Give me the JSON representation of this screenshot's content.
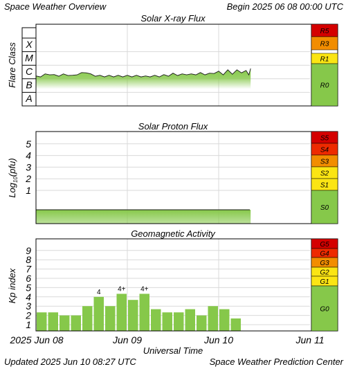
{
  "header": {
    "left": "Space Weather Overview",
    "right": "Begin 2025 06 08 00:00 UTC"
  },
  "footer": {
    "left": "Updated 2025 Jun 10 08:27 UTC",
    "right": "Space Weather Prediction Center"
  },
  "colors": {
    "series_green": "#86c84a",
    "grid": "#d9d9d9",
    "scale_red": "#d40000",
    "scale_redorange": "#ee2a00",
    "scale_orange": "#f28d00",
    "scale_yellow": "#fbe514",
    "scale_green": "#86c84a"
  },
  "chart_data": [
    {
      "type": "area",
      "title": "Solar X-ray Flux",
      "ylabel": "Flare Class",
      "yticks": [
        "A",
        "B",
        "C",
        "M",
        "X"
      ],
      "ylim": [
        0,
        5
      ],
      "xticks": [
        "2025 Jun 08",
        "Jun 09",
        "Jun 10",
        "Jun 11"
      ],
      "xlim_days": [
        0,
        3
      ],
      "data_end_day": 2.35,
      "series": [
        {
          "x_day": [
            0,
            0.05,
            0.1,
            0.15,
            0.2,
            0.25,
            0.3,
            0.35,
            0.4,
            0.45,
            0.5,
            0.55,
            0.6,
            0.65,
            0.7,
            0.75,
            0.8,
            0.85,
            0.9,
            0.95,
            1.0,
            1.05,
            1.1,
            1.15,
            1.2,
            1.25,
            1.3,
            1.35,
            1.4,
            1.45,
            1.5,
            1.55,
            1.6,
            1.65,
            1.7,
            1.75,
            1.8,
            1.85,
            1.9,
            1.95,
            2.0,
            2.05,
            2.1,
            2.15,
            2.2,
            2.25,
            2.3,
            2.33,
            2.35
          ],
          "y_level": [
            2.15,
            2.2,
            2.3,
            2.35,
            2.25,
            2.25,
            2.3,
            2.3,
            2.2,
            2.35,
            2.4,
            2.5,
            2.3,
            2.25,
            2.2,
            2.2,
            2.2,
            2.2,
            2.2,
            2.2,
            2.2,
            2.2,
            2.2,
            2.2,
            2.15,
            2.2,
            2.2,
            2.2,
            2.25,
            2.25,
            2.35,
            2.3,
            2.3,
            2.35,
            2.3,
            2.35,
            2.4,
            2.35,
            2.35,
            2.45,
            2.5,
            2.35,
            2.6,
            2.4,
            2.6,
            2.5,
            2.55,
            2.35,
            2.7
          ]
        }
      ],
      "scale": [
        {
          "label": "R5",
          "color": "#d40000"
        },
        {
          "label": "R3",
          "color": "#f28d00"
        },
        {
          "label": "R1",
          "color": "#fbe514"
        },
        {
          "label": "R0",
          "color": "#86c84a"
        }
      ]
    },
    {
      "type": "area",
      "title": "Solar Proton Flux",
      "ylabel": "Log10(pfu)",
      "yticks": [
        1,
        2,
        3,
        4,
        5
      ],
      "ylim": [
        -1.5,
        5.5
      ],
      "xlim_days": [
        0,
        3
      ],
      "data_end_day": 2.35,
      "series": [
        {
          "x_day": [
            0,
            0.5,
            1.0,
            1.5,
            2.0,
            2.35
          ],
          "y": [
            -0.7,
            -0.7,
            -0.7,
            -0.7,
            -0.72,
            -0.7
          ]
        }
      ],
      "scale": [
        {
          "label": "S5",
          "color": "#d40000"
        },
        {
          "label": "S4",
          "color": "#ee2a00"
        },
        {
          "label": "S3",
          "color": "#f28d00"
        },
        {
          "label": "S2",
          "color": "#fbe514"
        },
        {
          "label": "S1",
          "color": "#fbe514"
        },
        {
          "label": "S0",
          "color": "#86c84a"
        }
      ]
    },
    {
      "type": "bar",
      "title": "Geomagnetic Activity",
      "ylabel": "Kp index",
      "yticks": [
        1,
        2,
        3,
        4,
        5,
        6,
        7,
        8,
        9
      ],
      "ylim": [
        0,
        10
      ],
      "xticks": [
        "2025 Jun 08",
        "Jun 09",
        "Jun 10",
        "Jun 11"
      ],
      "xlim_days": [
        0,
        3
      ],
      "xlabel": "Universal Time",
      "bar_period_hours": 3,
      "values": [
        2.33,
        2.33,
        2.0,
        2.0,
        3.0,
        4.0,
        3.0,
        4.33,
        3.67,
        4.33,
        2.67,
        2.33,
        2.33,
        2.67,
        2.0,
        3.0,
        2.67,
        1.67
      ],
      "bar_labels": [
        "",
        "",
        "",
        "",
        "",
        "4",
        "",
        "4+",
        "",
        "4+",
        "",
        "",
        "",
        "",
        "",
        "",
        "",
        ""
      ],
      "scale": [
        {
          "label": "G5",
          "color": "#d40000"
        },
        {
          "label": "G4",
          "color": "#ee2a00"
        },
        {
          "label": "G3",
          "color": "#f28d00"
        },
        {
          "label": "G2",
          "color": "#fbe514"
        },
        {
          "label": "G1",
          "color": "#fbe514"
        },
        {
          "label": "G0",
          "color": "#86c84a"
        }
      ]
    }
  ]
}
